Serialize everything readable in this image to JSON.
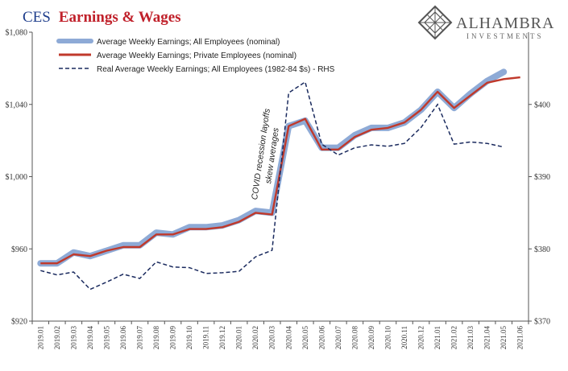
{
  "title": {
    "part1": "CES",
    "part2": "Earnings & Wages"
  },
  "logo": {
    "name": "ALHAMBRA",
    "sub": "INVESTMENTS",
    "icon": "diamond-lattice-icon"
  },
  "colors": {
    "title1": "#1f3e8c",
    "title2": "#c0202a",
    "all": "#8eaad6",
    "private": "#c0392b",
    "real": "#1a2a5e",
    "axis": "#555555"
  },
  "chart_data": {
    "type": "line",
    "categories": [
      "2019.01",
      "2019.02",
      "2019.03",
      "2019.04",
      "2019.05",
      "2019.06",
      "2019.07",
      "2019.08",
      "2019.09",
      "2019.10",
      "2019.11",
      "2019.12",
      "2020.01",
      "2020.02",
      "2020.03",
      "2020.04",
      "2020.05",
      "2020.06",
      "2020.07",
      "2020.08",
      "2020.09",
      "2020.10",
      "2020.11",
      "2020.12",
      "2021.01",
      "2021.02",
      "2021.03",
      "2021.04",
      "2021.05",
      "2021.06"
    ],
    "y_left": {
      "min": 920,
      "max": 1080,
      "ticks": [
        920,
        960,
        1000,
        1040,
        1080
      ],
      "tick_labels": [
        "$920",
        "$960",
        "$1,000",
        "$1,040",
        "$1,080"
      ]
    },
    "y_right": {
      "min": 370,
      "max": 410,
      "ticks": [
        370,
        380,
        390,
        400
      ],
      "tick_labels": [
        "$370",
        "$380",
        "$390",
        "$400"
      ]
    },
    "series": [
      {
        "name": "Average Weekly Earnings; All Employees (nominal)",
        "axis": "left",
        "style": "thick-light-blue",
        "values": [
          952,
          952,
          958,
          956,
          959,
          962,
          962,
          969,
          968,
          972,
          972,
          973,
          976,
          981,
          980,
          1028,
          1031,
          1016,
          1016,
          1023,
          1027,
          1027,
          1030,
          1037,
          1047,
          1038,
          1046,
          1053,
          1058,
          null
        ]
      },
      {
        "name": "Average Weekly Earnings; Private Employees (nominal)",
        "axis": "left",
        "style": "red",
        "values": [
          952,
          952,
          957,
          956,
          959,
          961,
          961,
          968,
          968,
          971,
          971,
          972,
          975,
          980,
          979,
          1028,
          1032,
          1015,
          1015,
          1022,
          1026,
          1027,
          1030,
          1037,
          1047,
          1038,
          1045,
          1052,
          1054,
          1055
        ]
      },
      {
        "name": "Real Average Weekly Earnings; All Employees (1982-84 $s) - RHS",
        "axis": "right",
        "style": "dashed-navy",
        "values": [
          377.0,
          376.4,
          376.8,
          374.4,
          375.4,
          376.5,
          375.9,
          378.2,
          377.5,
          377.4,
          376.6,
          376.7,
          376.9,
          378.9,
          379.8,
          401.6,
          403.1,
          394.5,
          393.0,
          394.0,
          394.4,
          394.2,
          394.6,
          396.8,
          400.0,
          394.5,
          394.8,
          394.6,
          394.1,
          null
        ]
      }
    ],
    "annotation": {
      "line1": "COVID recession layoffs",
      "line2": "skew averages"
    },
    "legend": "top-left",
    "grid": false
  }
}
